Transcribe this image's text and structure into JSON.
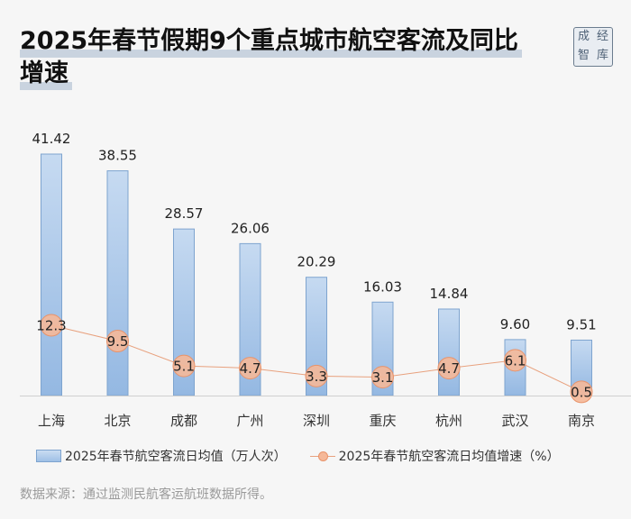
{
  "header": {
    "title_line1": "2025年春节假期9个重点城市航空客流及同比",
    "title_line2": "增速"
  },
  "logo": {
    "chars": [
      "成",
      "经",
      "智",
      "库"
    ]
  },
  "legend": {
    "bar_label": "2025年春节航空客流日均值（万人次）",
    "line_label": "2025年春节航空客流日均值增速（%）"
  },
  "source": "数据来源：通过监测民航客运航班数据所得。",
  "colors": {
    "bar": "#a9c6e8",
    "bar_edge": "#7ea4cf",
    "line": "#e8a17e",
    "marker": "#f5b898"
  },
  "chart_data": {
    "type": "bar",
    "categories": [
      "上海",
      "北京",
      "成都",
      "广州",
      "深圳",
      "重庆",
      "杭州",
      "武汉",
      "南京"
    ],
    "series": [
      {
        "name": "2025年春节航空客流日均值（万人次）",
        "type": "bar",
        "values": [
          41.42,
          38.55,
          28.57,
          26.06,
          20.29,
          16.03,
          14.84,
          9.6,
          9.51
        ],
        "labels": [
          "41.42",
          "38.55",
          "28.57",
          "26.06",
          "20.29",
          "16.03",
          "14.84",
          "9.60",
          "9.51"
        ]
      },
      {
        "name": "2025年春节航空客流日均值增速（%）",
        "type": "line",
        "values": [
          12.3,
          9.5,
          5.1,
          4.7,
          3.3,
          3.1,
          4.7,
          6.1,
          0.5
        ],
        "labels": [
          "12.3",
          "9.5",
          "5.1",
          "4.7",
          "3.3",
          "3.1",
          "4.7",
          "6.1",
          "0.5"
        ]
      }
    ],
    "grid": false,
    "legend_position": "bottom"
  }
}
